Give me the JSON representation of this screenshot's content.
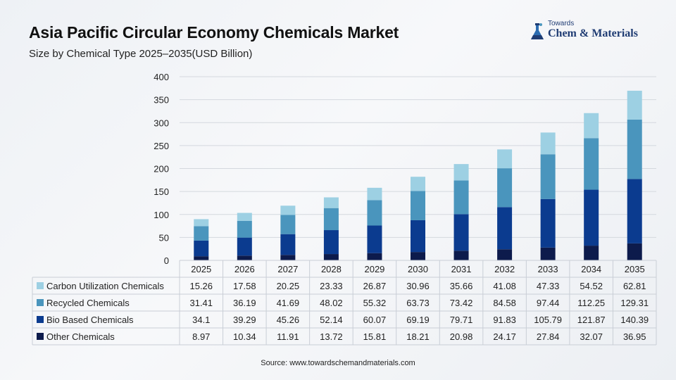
{
  "header": {
    "title": "Asia Pacific Circular Economy Chemicals Market",
    "subtitle": "Size by Chemical Type 2025–2035(USD Billion)"
  },
  "logo": {
    "small_text": "Towards",
    "main_text": "Chem & Materials"
  },
  "source": "Source: www.towardschemandmaterials.com",
  "chart_data": {
    "type": "bar",
    "stacked": true,
    "categories": [
      "2025",
      "2026",
      "2027",
      "2028",
      "2029",
      "2030",
      "2031",
      "2032",
      "2033",
      "2034",
      "2035"
    ],
    "ylim": [
      0,
      400
    ],
    "yticks": [
      0,
      50,
      100,
      150,
      200,
      250,
      300,
      350,
      400
    ],
    "grid": true,
    "legend": "table-left",
    "series": [
      {
        "name": "Other Chemicals",
        "color": "#0d1b4c",
        "values": [
          8.97,
          10.34,
          11.91,
          13.72,
          15.81,
          18.21,
          20.98,
          24.17,
          27.84,
          32.07,
          36.95
        ]
      },
      {
        "name": "Bio Based Chemicals",
        "color": "#0b3b8f",
        "values": [
          34.1,
          39.29,
          45.26,
          52.14,
          60.07,
          69.19,
          79.71,
          91.83,
          105.79,
          121.87,
          140.39
        ]
      },
      {
        "name": "Recycled Chemicals",
        "color": "#4a95bd",
        "values": [
          31.41,
          36.19,
          41.69,
          48.02,
          55.32,
          63.73,
          73.42,
          84.58,
          97.44,
          112.25,
          129.31
        ]
      },
      {
        "name": "Carbon Utilization Chemicals",
        "color": "#9dd0e3",
        "values": [
          15.26,
          17.58,
          20.25,
          23.33,
          26.87,
          30.96,
          35.66,
          41.08,
          47.33,
          54.52,
          62.81
        ]
      }
    ],
    "table_order": [
      "Carbon Utilization Chemicals",
      "Recycled Chemicals",
      "Bio Based Chemicals",
      "Other Chemicals"
    ]
  }
}
